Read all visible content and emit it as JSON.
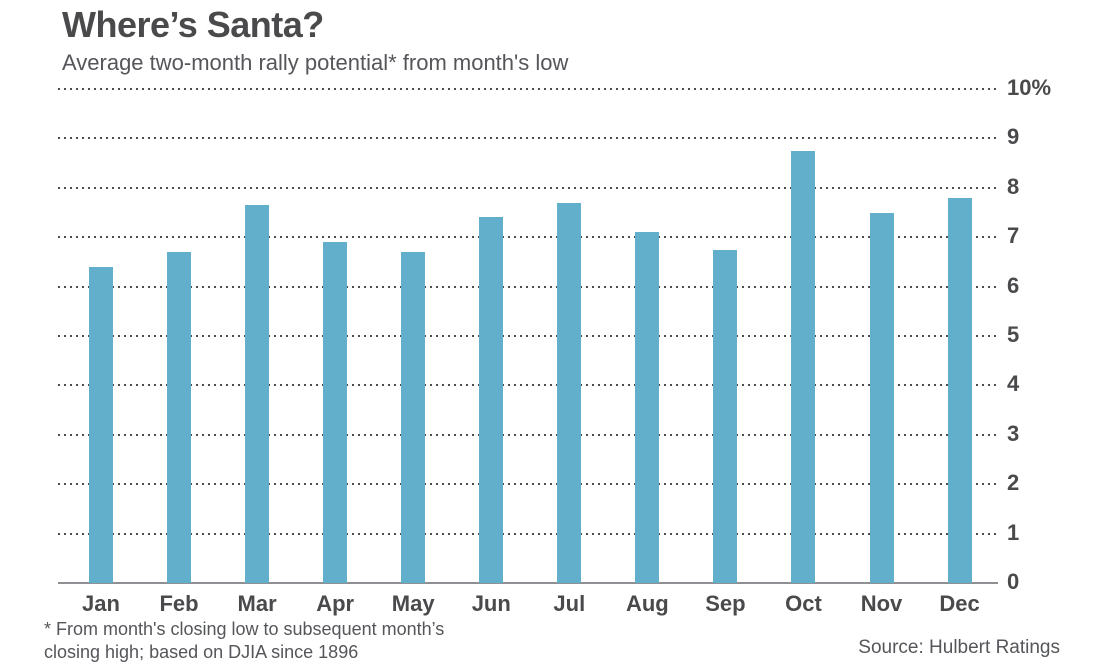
{
  "header": {
    "title": "Where’s Santa?",
    "subtitle": "Average two-month rally potential* from month's low"
  },
  "chart_data": {
    "type": "bar",
    "title": "Where’s Santa?",
    "subtitle": "Average two-month rally potential* from month's low",
    "categories": [
      "Jan",
      "Feb",
      "Mar",
      "Apr",
      "May",
      "Jun",
      "Jul",
      "Aug",
      "Sep",
      "Oct",
      "Nov",
      "Dec"
    ],
    "values": [
      6.4,
      6.7,
      7.65,
      6.9,
      6.7,
      7.4,
      7.7,
      7.1,
      6.75,
      8.75,
      7.5,
      7.8
    ],
    "xlabel": "",
    "ylabel": "",
    "ylim": [
      0,
      10
    ],
    "ytick_labels": [
      "10%",
      "9",
      "8",
      "7",
      "6",
      "5",
      "4",
      "3",
      "2",
      "1",
      "0"
    ],
    "grid": "horizontal-dotted",
    "legend": "none",
    "bar_color": "#62afcc",
    "footnote": "* From month's closing low to subsequent month’s closing high; based on DJIA since 1896",
    "source": "Source: Hulbert Ratings"
  },
  "footer": {
    "footnote_line1": "* From month's closing low to subsequent month’s",
    "footnote_line2": "closing high; based on DJIA since 1896",
    "source": "Source: Hulbert Ratings"
  }
}
